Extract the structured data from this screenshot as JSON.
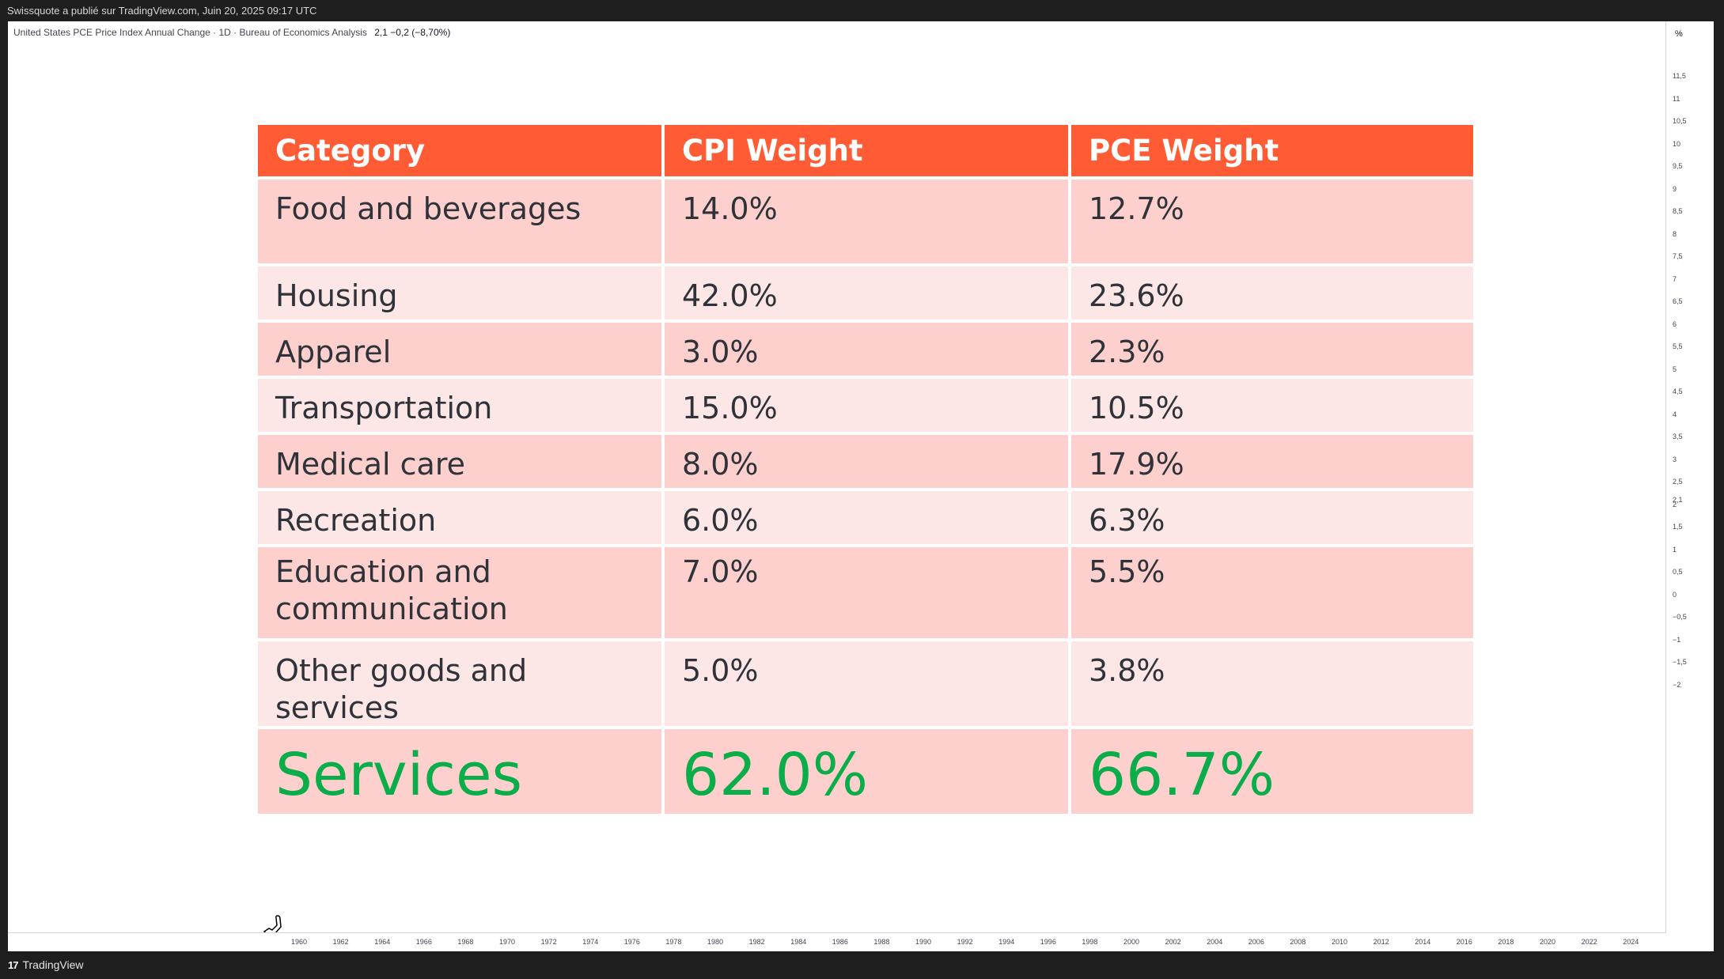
{
  "top_bar": {
    "text": "Swissquote a publié sur TradingView.com, Juin 20, 2025 09:17 UTC"
  },
  "legend": {
    "title": "United States PCE Price Index Annual Change · 1D · Bureau of Economics Analysis",
    "values": "2,1  −0,2 (−8,70%)"
  },
  "price_axis": {
    "unit": "%",
    "ticks": [
      "11,5",
      "11",
      "10,5",
      "10",
      "9,5",
      "9",
      "8,5",
      "8",
      "7,5",
      "7",
      "6,5",
      "6",
      "5,5",
      "5",
      "4,5",
      "4",
      "3,5",
      "3",
      "2,5",
      "2,1",
      "2",
      "1,5",
      "1",
      "0,5",
      "0",
      "−0,5",
      "−1",
      "−1,5",
      "−2"
    ]
  },
  "time_axis": {
    "years": [
      "1960",
      "1962",
      "1964",
      "1966",
      "1968",
      "1970",
      "1972",
      "1974",
      "1976",
      "1978",
      "1980",
      "1982",
      "1984",
      "1986",
      "1988",
      "1990",
      "1992",
      "1994",
      "1996",
      "1998",
      "2000",
      "2002",
      "2004",
      "2006",
      "2008",
      "2010",
      "2012",
      "2014",
      "2016",
      "2018",
      "2020",
      "2022",
      "2024"
    ]
  },
  "table": {
    "headers": [
      "Category",
      "CPI Weight",
      "PCE Weight"
    ],
    "rows": [
      [
        "Food and beverages",
        "14.0%",
        "12.7%"
      ],
      [
        "Housing",
        "42.0%",
        "23.6%"
      ],
      [
        "Apparel",
        "3.0%",
        "2.3%"
      ],
      [
        "Transportation",
        "15.0%",
        "10.5%"
      ],
      [
        "Medical care",
        "8.0%",
        "17.9%"
      ],
      [
        "Recreation",
        "6.0%",
        "6.3%"
      ],
      [
        "Education and communication",
        "7.0%",
        "5.5%"
      ],
      [
        "Other goods and services",
        "5.0%",
        "3.8%"
      ],
      [
        "Services",
        "62.0%",
        "66.7%"
      ]
    ]
  },
  "bottom_bar": {
    "brand": "TradingView"
  },
  "colors": {
    "header": "#ff5c35",
    "row_dark": "#fdd0cd",
    "row_light": "#fde7e6",
    "services_green": "#0aad4a"
  }
}
